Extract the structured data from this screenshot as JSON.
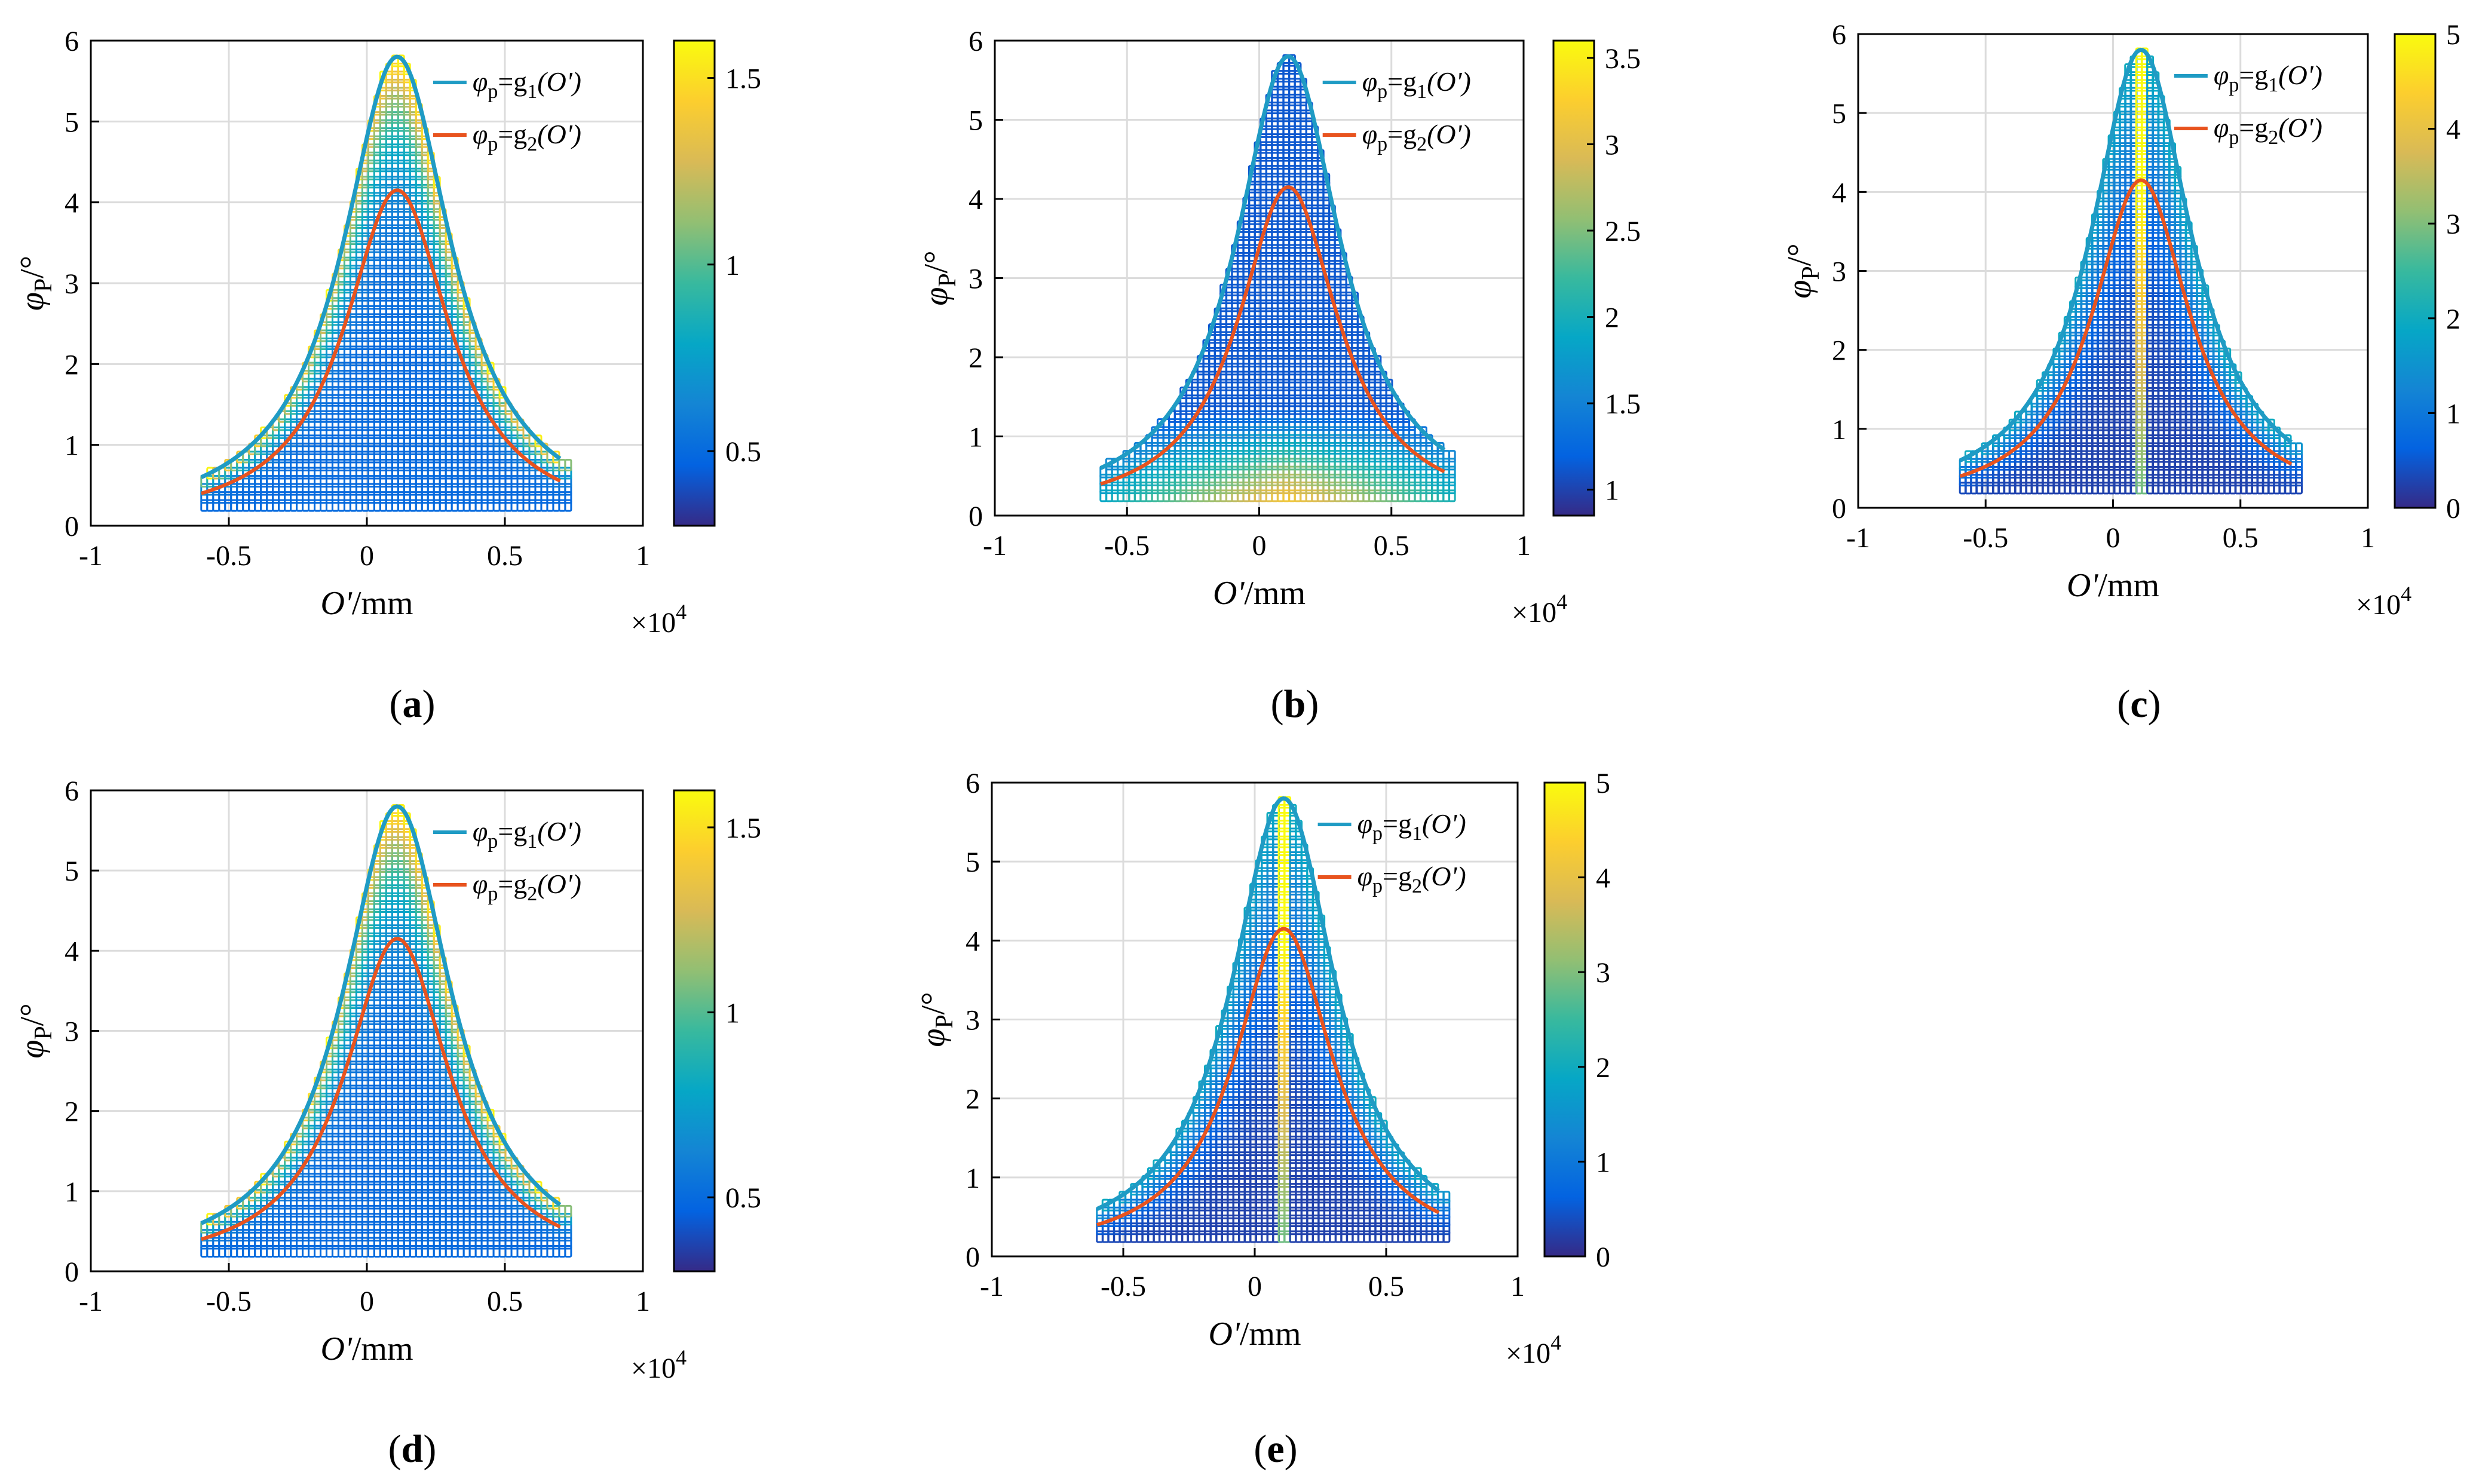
{
  "chart_data": [
    {
      "type": "scatter",
      "id": "a",
      "panel_label": "(a)",
      "xlabel": "O'/mm",
      "ylabel": "φP/°",
      "x_multiplier": "×10^4",
      "xlim": [
        -1,
        1
      ],
      "ylim": [
        0,
        6
      ],
      "xticks": [
        "-1",
        "-0.5",
        "0",
        "0.5",
        "1"
      ],
      "yticks": [
        "0",
        "1",
        "2",
        "3",
        "4",
        "5",
        "6"
      ],
      "colorbar": {
        "range": [
          0.3,
          1.6
        ],
        "ticks": [
          "0.5",
          "1",
          "1.5"
        ],
        "tick_values": [
          0.5,
          1,
          1.5
        ]
      },
      "color_pattern": "edges",
      "series": [
        {
          "name": "φp=g1(O')",
          "label_parts": [
            "φ",
            "p",
            "=g",
            "1",
            "(O')"
          ],
          "color": "#1f9bc4",
          "peak_x": 0.11,
          "peak_y": 5.8,
          "x_range": [
            -0.6,
            0.7
          ],
          "end_y": 0.6,
          "shape": "lorentzian"
        },
        {
          "name": "φp=g2(O')",
          "label_parts": [
            "φ",
            "p",
            "=g",
            "2",
            "(O')"
          ],
          "color": "#e8531e",
          "peak_x": 0.11,
          "peak_y": 4.15,
          "x_range": [
            -0.6,
            0.7
          ],
          "end_y": 0.4,
          "shape": "lorentzian"
        }
      ],
      "mesh_x_range": [
        -0.6,
        0.74
      ]
    },
    {
      "type": "scatter",
      "id": "b",
      "panel_label": "(b)",
      "xlabel": "O'/mm",
      "ylabel": "φP/°",
      "x_multiplier": "×10^4",
      "xlim": [
        -1,
        1
      ],
      "ylim": [
        0,
        6
      ],
      "xticks": [
        "-1",
        "-0.5",
        "0",
        "0.5",
        "1"
      ],
      "yticks": [
        "0",
        "1",
        "2",
        "3",
        "4",
        "5",
        "6"
      ],
      "colorbar": {
        "range": [
          0.85,
          3.6
        ],
        "ticks": [
          "1",
          "1.5",
          "2",
          "2.5",
          "3",
          "3.5"
        ],
        "tick_values": [
          1,
          1.5,
          2,
          2.5,
          3,
          3.5
        ]
      },
      "color_pattern": "bottom",
      "series": [
        {
          "name": "φp=g1(O')",
          "label_parts": [
            "φ",
            "p",
            "=g",
            "1",
            "(O')"
          ],
          "color": "#1f9bc4",
          "peak_x": 0.11,
          "peak_y": 5.8,
          "x_range": [
            -0.6,
            0.7
          ],
          "end_y": 0.6,
          "shape": "lorentzian"
        },
        {
          "name": "φp=g2(O')",
          "label_parts": [
            "φ",
            "p",
            "=g",
            "2",
            "(O')"
          ],
          "color": "#e8531e",
          "peak_x": 0.11,
          "peak_y": 4.15,
          "x_range": [
            -0.6,
            0.7
          ],
          "end_y": 0.4,
          "shape": "lorentzian"
        }
      ],
      "mesh_x_range": [
        -0.6,
        0.74
      ]
    },
    {
      "type": "scatter",
      "id": "c",
      "panel_label": "(c)",
      "xlabel": "O'/mm",
      "ylabel": "φP/°",
      "x_multiplier": "×10^4",
      "xlim": [
        -1,
        1
      ],
      "ylim": [
        0,
        6
      ],
      "xticks": [
        "-1",
        "-0.5",
        "0",
        "0.5",
        "1"
      ],
      "yticks": [
        "0",
        "1",
        "2",
        "3",
        "4",
        "5",
        "6"
      ],
      "colorbar": {
        "range": [
          0,
          5
        ],
        "ticks": [
          "0",
          "1",
          "2",
          "3",
          "4",
          "5"
        ],
        "tick_values": [
          0,
          1,
          2,
          3,
          4,
          5
        ]
      },
      "color_pattern": "center",
      "series": [
        {
          "name": "φp=g1(O')",
          "label_parts": [
            "φ",
            "p",
            "=g",
            "1",
            "(O')"
          ],
          "color": "#1f9bc4",
          "peak_x": 0.11,
          "peak_y": 5.8,
          "x_range": [
            -0.6,
            0.7
          ],
          "end_y": 0.6,
          "shape": "lorentzian"
        },
        {
          "name": "φp=g2(O')",
          "label_parts": [
            "φ",
            "p",
            "=g",
            "2",
            "(O')"
          ],
          "color": "#e8531e",
          "peak_x": 0.11,
          "peak_y": 4.15,
          "x_range": [
            -0.6,
            0.7
          ],
          "end_y": 0.4,
          "shape": "lorentzian"
        }
      ],
      "mesh_x_range": [
        -0.6,
        0.74
      ]
    },
    {
      "type": "scatter",
      "id": "d",
      "panel_label": "(d)",
      "xlabel": "O'/mm",
      "ylabel": "φP/°",
      "x_multiplier": "×10^4",
      "xlim": [
        -1,
        1
      ],
      "ylim": [
        0,
        6
      ],
      "xticks": [
        "-1",
        "-0.5",
        "0",
        "0.5",
        "1"
      ],
      "yticks": [
        "0",
        "1",
        "2",
        "3",
        "4",
        "5",
        "6"
      ],
      "colorbar": {
        "range": [
          0.3,
          1.6
        ],
        "ticks": [
          "0.5",
          "1",
          "1.5"
        ],
        "tick_values": [
          0.5,
          1,
          1.5
        ]
      },
      "color_pattern": "edges",
      "series": [
        {
          "name": "φp=g1(O')",
          "label_parts": [
            "φ",
            "p",
            "=g",
            "1",
            "(O')"
          ],
          "color": "#1f9bc4",
          "peak_x": 0.11,
          "peak_y": 5.8,
          "x_range": [
            -0.6,
            0.7
          ],
          "end_y": 0.6,
          "shape": "lorentzian"
        },
        {
          "name": "φp=g2(O')",
          "label_parts": [
            "φ",
            "p",
            "=g",
            "2",
            "(O')"
          ],
          "color": "#e8531e",
          "peak_x": 0.11,
          "peak_y": 4.15,
          "x_range": [
            -0.6,
            0.7
          ],
          "end_y": 0.4,
          "shape": "lorentzian"
        }
      ],
      "mesh_x_range": [
        -0.6,
        0.74
      ]
    },
    {
      "type": "scatter",
      "id": "e",
      "panel_label": "(e)",
      "xlabel": "O'/mm",
      "ylabel": "φP/°",
      "x_multiplier": "×10^4",
      "xlim": [
        -1,
        1
      ],
      "ylim": [
        0,
        6
      ],
      "xticks": [
        "-1",
        "-0.5",
        "0",
        "0.5",
        "1"
      ],
      "yticks": [
        "0",
        "1",
        "2",
        "3",
        "4",
        "5",
        "6"
      ],
      "colorbar": {
        "range": [
          0,
          5
        ],
        "ticks": [
          "0",
          "1",
          "2",
          "3",
          "4",
          "5"
        ],
        "tick_values": [
          0,
          1,
          2,
          3,
          4,
          5
        ]
      },
      "color_pattern": "center",
      "series": [
        {
          "name": "φp=g1(O')",
          "label_parts": [
            "φ",
            "p",
            "=g",
            "1",
            "(O')"
          ],
          "color": "#1f9bc4",
          "peak_x": 0.11,
          "peak_y": 5.8,
          "x_range": [
            -0.6,
            0.7
          ],
          "end_y": 0.6,
          "shape": "lorentzian"
        },
        {
          "name": "φp=g2(O')",
          "label_parts": [
            "φ",
            "p",
            "=g",
            "2",
            "(O')"
          ],
          "color": "#e8531e",
          "peak_x": 0.11,
          "peak_y": 4.15,
          "x_range": [
            -0.6,
            0.7
          ],
          "end_y": 0.4,
          "shape": "lorentzian"
        }
      ],
      "mesh_x_range": [
        -0.6,
        0.74
      ]
    }
  ]
}
